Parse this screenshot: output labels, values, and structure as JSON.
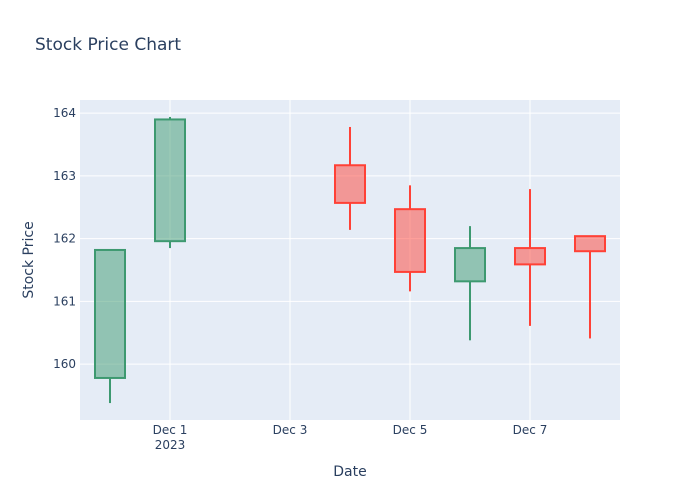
{
  "chart_data": {
    "type": "candlestick",
    "title": "Stock Price Chart",
    "x_label": "Date",
    "y_label": "Stock Price",
    "x": [
      "2023-11-30",
      "2023-12-01",
      "2023-12-04",
      "2023-12-05",
      "2023-12-06",
      "2023-12-07",
      "2023-12-08"
    ],
    "open": [
      159.78,
      161.96,
      163.17,
      162.47,
      161.32,
      161.85,
      162.04
    ],
    "high": [
      161.82,
      163.94,
      163.78,
      162.85,
      162.2,
      162.79,
      162.04
    ],
    "low": [
      159.38,
      161.85,
      162.14,
      161.16,
      160.38,
      160.61,
      160.41
    ],
    "close": [
      161.82,
      163.9,
      162.57,
      161.47,
      161.85,
      161.59,
      161.8
    ],
    "increasing_color": "#3D9970",
    "decreasing_color": "#FF4136",
    "xlim": [
      "2023-11-29 12:00",
      "2023-12-08 12:00"
    ],
    "xticks": [
      {
        "value": "2023-12-01",
        "label": "Dec 1"
      },
      {
        "value": "2023-12-03",
        "label": "Dec 3"
      },
      {
        "value": "2023-12-05",
        "label": "Dec 5"
      },
      {
        "value": "2023-12-07",
        "label": "Dec 7"
      }
    ],
    "x_year_label": "2023",
    "ylim": [
      159.11,
      164.21
    ],
    "yticks": [
      160,
      161,
      162,
      163,
      164
    ],
    "grid": true
  }
}
